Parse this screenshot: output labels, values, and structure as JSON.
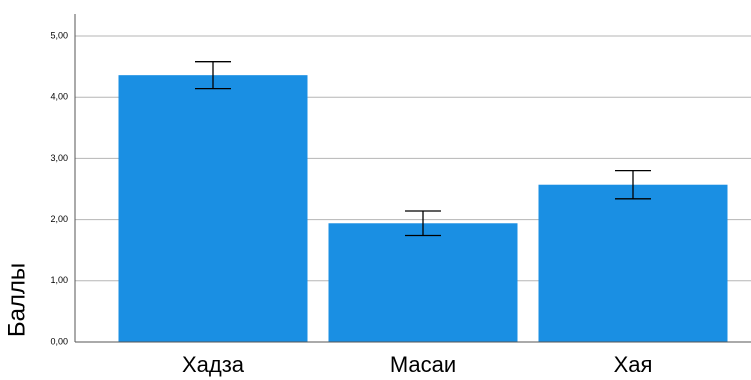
{
  "chart_data": {
    "type": "bar",
    "y_label": "Баллы",
    "categories": [
      "Хадза",
      "Масаи",
      "Хая"
    ],
    "values": [
      4.36,
      1.94,
      2.57
    ],
    "errors": [
      0.22,
      0.2,
      0.23
    ],
    "color": "#1a8fe3",
    "ylim": [
      0,
      5
    ],
    "yticks": [
      {
        "value": 0,
        "label": "0,00"
      },
      {
        "value": 1,
        "label": "1,00"
      },
      {
        "value": 2,
        "label": "2,00"
      },
      {
        "value": 3,
        "label": "3,00"
      },
      {
        "value": 4,
        "label": "4,00"
      },
      {
        "value": 5,
        "label": "5,00"
      }
    ],
    "grid": true
  }
}
